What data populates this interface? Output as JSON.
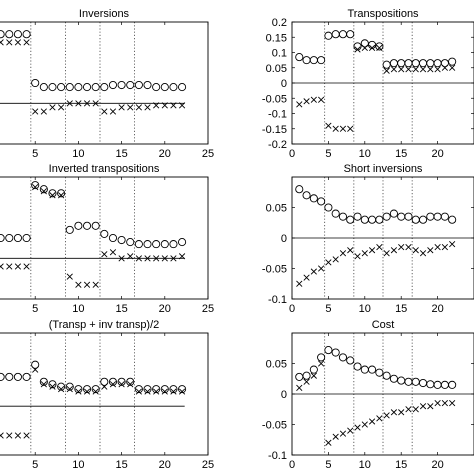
{
  "chart_data": [
    {
      "type": "scatter",
      "title": "Inversions",
      "xlim": [
        0,
        25
      ],
      "x_ticks": [
        5,
        10,
        15,
        20,
        25
      ],
      "y_ticks": [],
      "vlines": [
        4.5,
        8.5,
        12.5,
        16.5
      ],
      "hline": 0,
      "series": [
        {
          "marker": "o",
          "x": [
            1,
            2,
            3,
            4,
            5,
            6,
            7,
            8,
            9,
            10,
            11,
            12,
            13,
            14,
            15,
            16,
            17,
            18,
            19,
            20,
            21,
            22
          ],
          "y": [
            0.17,
            0.17,
            0.17,
            0.17,
            0.05,
            0.04,
            0.04,
            0.04,
            0.04,
            0.04,
            0.04,
            0.04,
            0.04,
            0.045,
            0.045,
            0.045,
            0.045,
            0.045,
            0.04,
            0.04,
            0.04,
            0.04
          ]
        },
        {
          "marker": "x",
          "x": [
            1,
            2,
            3,
            4,
            5,
            6,
            7,
            8,
            9,
            10,
            11,
            12,
            13,
            14,
            15,
            16,
            17,
            18,
            19,
            20,
            21,
            22
          ],
          "y": [
            0.15,
            0.15,
            0.15,
            0.15,
            -0.02,
            -0.02,
            -0.01,
            -0.01,
            0.0,
            0.0,
            0.0,
            0.0,
            -0.02,
            -0.02,
            -0.01,
            -0.01,
            -0.01,
            -0.01,
            -0.005,
            -0.005,
            -0.005,
            -0.005
          ]
        }
      ]
    },
    {
      "type": "scatter",
      "title": "Transpositions",
      "xlim": [
        0,
        25
      ],
      "ylim": [
        -0.2,
        0.2
      ],
      "x_ticks": [
        0,
        5,
        10,
        15,
        20
      ],
      "y_ticks": [
        -0.2,
        -0.15,
        -0.1,
        -0.05,
        0,
        0.05,
        0.1,
        0.15,
        0.2
      ],
      "vlines": [
        4.5,
        8.5,
        12.5,
        16.5
      ],
      "hline": 0,
      "series": [
        {
          "marker": "o",
          "x": [
            1,
            2,
            3,
            4,
            5,
            6,
            7,
            8,
            9,
            10,
            11,
            12,
            13,
            14,
            15,
            16,
            17,
            18,
            19,
            20,
            21,
            22
          ],
          "y": [
            0.085,
            0.075,
            0.075,
            0.075,
            0.155,
            0.16,
            0.16,
            0.16,
            0.12,
            0.13,
            0.125,
            0.12,
            0.06,
            0.065,
            0.065,
            0.065,
            0.065,
            0.065,
            0.065,
            0.065,
            0.065,
            0.07
          ]
        },
        {
          "marker": "x",
          "x": [
            1,
            2,
            3,
            4,
            5,
            6,
            7,
            8,
            9,
            10,
            11,
            12,
            13,
            14,
            15,
            16,
            17,
            18,
            19,
            20,
            21,
            22
          ],
          "y": [
            -0.07,
            -0.06,
            -0.055,
            -0.055,
            -0.14,
            -0.15,
            -0.15,
            -0.15,
            0.11,
            0.115,
            0.115,
            0.115,
            0.04,
            0.045,
            0.045,
            0.045,
            0.045,
            0.045,
            0.045,
            0.045,
            0.05,
            0.05
          ]
        }
      ]
    },
    {
      "type": "scatter",
      "title": "Inverted transpositions",
      "xlim": [
        0,
        25
      ],
      "x_ticks": [
        5,
        10,
        15,
        20,
        25
      ],
      "y_ticks": [],
      "vlines": [
        4.5,
        8.5,
        12.5,
        16.5
      ],
      "hline": 0,
      "series": [
        {
          "marker": "o",
          "x": [
            1,
            2,
            3,
            4,
            5,
            6,
            7,
            8,
            9,
            10,
            11,
            12,
            13,
            14,
            15,
            16,
            17,
            18,
            19,
            20,
            21,
            22
          ],
          "y": [
            0.05,
            0.05,
            0.05,
            0.05,
            0.18,
            0.17,
            0.16,
            0.16,
            0.07,
            0.08,
            0.08,
            0.08,
            0.06,
            0.05,
            0.045,
            0.04,
            0.035,
            0.035,
            0.035,
            0.035,
            0.035,
            0.04
          ]
        },
        {
          "marker": "x",
          "x": [
            1,
            2,
            3,
            4,
            5,
            6,
            7,
            8,
            9,
            10,
            11,
            12,
            13,
            14,
            15,
            16,
            17,
            18,
            19,
            20,
            21,
            22
          ],
          "y": [
            -0.02,
            -0.02,
            -0.02,
            -0.02,
            0.175,
            0.165,
            0.155,
            0.155,
            -0.045,
            -0.065,
            -0.065,
            -0.065,
            0.01,
            0.015,
            0.0,
            0.005,
            0.0,
            0.0,
            0.0,
            0.0,
            0.0,
            0.005
          ]
        }
      ]
    },
    {
      "type": "scatter",
      "title": "Short inversions",
      "xlim": [
        0,
        25
      ],
      "ylim": [
        -0.1,
        0.1
      ],
      "x_ticks": [
        0,
        5,
        10,
        15,
        20
      ],
      "y_ticks": [
        -0.1,
        -0.05,
        0,
        0.05
      ],
      "vlines": [
        4.5,
        8.5,
        12.5,
        16.5
      ],
      "hline": 0,
      "series": [
        {
          "marker": "o",
          "x": [
            1,
            2,
            3,
            4,
            5,
            6,
            7,
            8,
            9,
            10,
            11,
            12,
            13,
            14,
            15,
            16,
            17,
            18,
            19,
            20,
            21,
            22
          ],
          "y": [
            0.08,
            0.07,
            0.065,
            0.06,
            0.05,
            0.04,
            0.035,
            0.03,
            0.035,
            0.03,
            0.03,
            0.03,
            0.035,
            0.04,
            0.035,
            0.035,
            0.03,
            0.03,
            0.035,
            0.035,
            0.035,
            0.03
          ]
        },
        {
          "marker": "x",
          "x": [
            1,
            2,
            3,
            4,
            5,
            6,
            7,
            8,
            9,
            10,
            11,
            12,
            13,
            14,
            15,
            16,
            17,
            18,
            19,
            20,
            21,
            22
          ],
          "y": [
            -0.075,
            -0.065,
            -0.055,
            -0.05,
            -0.04,
            -0.035,
            -0.025,
            -0.02,
            -0.03,
            -0.025,
            -0.02,
            -0.015,
            -0.025,
            -0.02,
            -0.015,
            -0.015,
            -0.02,
            -0.025,
            -0.02,
            -0.015,
            -0.015,
            -0.01
          ]
        }
      ]
    },
    {
      "type": "scatter",
      "title": "(Transp + inv transp)/2",
      "xlim": [
        0,
        25
      ],
      "x_ticks": [
        5,
        10,
        15,
        20,
        25
      ],
      "y_ticks": [],
      "vlines": [
        4.5,
        8.5,
        12.5,
        16.5
      ],
      "hline": 0,
      "series": [
        {
          "marker": "o",
          "x": [
            1,
            2,
            3,
            4,
            5,
            6,
            7,
            8,
            9,
            10,
            11,
            12,
            13,
            14,
            15,
            16,
            17,
            18,
            19,
            20,
            21,
            22
          ],
          "y": [
            0.06,
            0.06,
            0.06,
            0.06,
            0.085,
            0.05,
            0.045,
            0.04,
            0.04,
            0.035,
            0.035,
            0.035,
            0.05,
            0.05,
            0.05,
            0.05,
            0.035,
            0.035,
            0.035,
            0.035,
            0.035,
            0.035
          ]
        },
        {
          "marker": "x",
          "x": [
            1,
            2,
            3,
            4,
            5,
            6,
            7,
            8,
            9,
            10,
            11,
            12,
            13,
            14,
            15,
            16,
            17,
            18,
            19,
            20,
            21,
            22
          ],
          "y": [
            -0.06,
            -0.06,
            -0.06,
            -0.06,
            0.075,
            0.045,
            0.04,
            0.035,
            0.035,
            0.03,
            0.03,
            0.03,
            0.04,
            0.045,
            0.045,
            0.045,
            0.03,
            0.03,
            0.03,
            0.03,
            0.03,
            0.03
          ]
        }
      ]
    },
    {
      "type": "scatter",
      "title": "Cost",
      "xlim": [
        0,
        25
      ],
      "ylim": [
        -0.1,
        0.1
      ],
      "x_ticks": [
        0,
        5,
        10,
        15,
        20
      ],
      "y_ticks": [
        -0.1,
        -0.05,
        0,
        0.05
      ],
      "vlines": [
        4.5,
        8.5,
        12.5,
        16.5
      ],
      "hline": 0,
      "series": [
        {
          "marker": "o",
          "x": [
            1,
            2,
            3,
            4,
            5,
            6,
            7,
            8,
            9,
            10,
            11,
            12,
            13,
            14,
            15,
            16,
            17,
            18,
            19,
            20,
            21,
            22
          ],
          "y": [
            0.028,
            0.03,
            0.04,
            0.06,
            0.072,
            0.068,
            0.06,
            0.055,
            0.045,
            0.04,
            0.04,
            0.035,
            0.03,
            0.025,
            0.022,
            0.02,
            0.02,
            0.018,
            0.016,
            0.015,
            0.015,
            0.015
          ]
        },
        {
          "marker": "x",
          "x": [
            1,
            2,
            3,
            4,
            5,
            6,
            7,
            8,
            9,
            10,
            11,
            12,
            13,
            14,
            15,
            16,
            17,
            18,
            19,
            20,
            21,
            22
          ],
          "y": [
            0.01,
            0.02,
            0.03,
            0.05,
            -0.08,
            -0.07,
            -0.065,
            -0.06,
            -0.055,
            -0.05,
            -0.045,
            -0.04,
            -0.035,
            -0.03,
            -0.03,
            -0.025,
            -0.025,
            -0.02,
            -0.02,
            -0.015,
            -0.015,
            -0.015
          ]
        }
      ]
    }
  ]
}
